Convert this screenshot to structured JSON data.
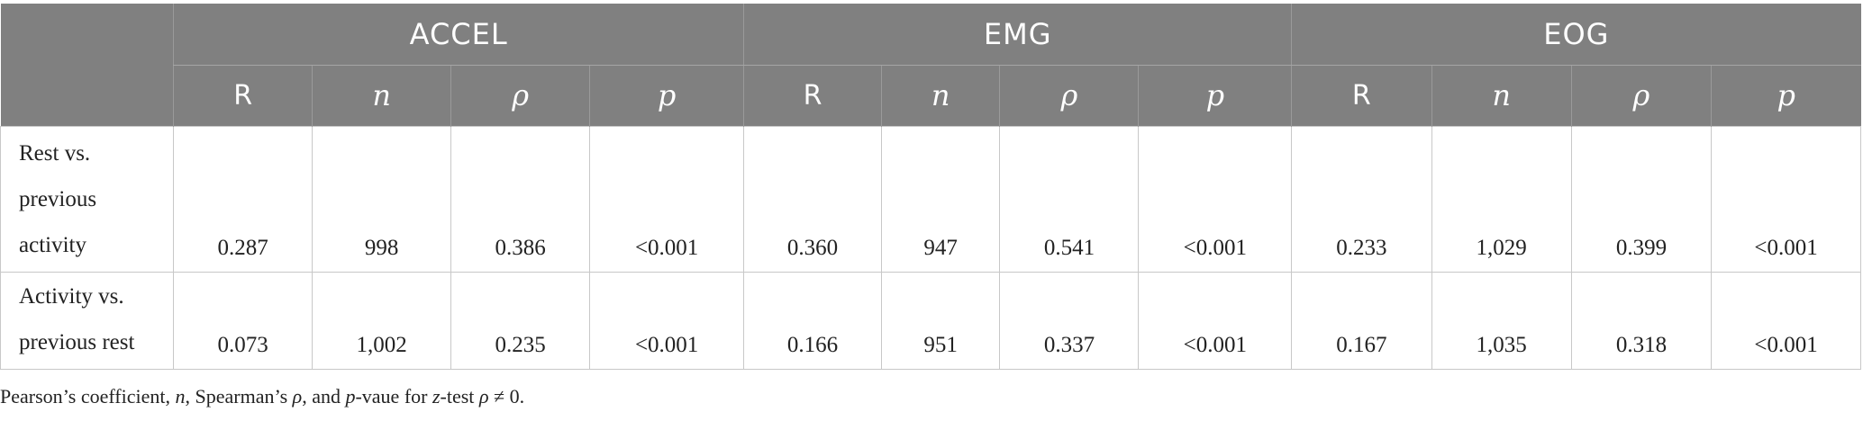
{
  "groups": [
    "ACCEL",
    "EMG",
    "EOG"
  ],
  "subheaders": [
    "R",
    "n",
    "ρ",
    "p"
  ],
  "rows": [
    {
      "label_lines": [
        "Rest vs.",
        "previous",
        "activity"
      ],
      "values": [
        "0.287",
        "998",
        "0.386",
        "<0.001",
        "0.360",
        "947",
        "0.541",
        "<0.001",
        "0.233",
        "1,029",
        "0.399",
        "<0.001"
      ]
    },
    {
      "label_lines": [
        "Activity vs.",
        "previous rest"
      ],
      "values": [
        "0.073",
        "1,002",
        "0.235",
        "<0.001",
        "0.166",
        "951",
        "0.337",
        "<0.001",
        "0.167",
        "1,035",
        "0.318",
        "<0.001"
      ]
    }
  ],
  "footnote": {
    "t1": "Pearson’s coefficient, ",
    "i1": "n",
    "t2": ", Spearman’s ",
    "i2": "ρ",
    "t3": ", and ",
    "i3": "p",
    "t4": "-vaue for ",
    "i4": "z",
    "t5": "-test ",
    "i5": "ρ",
    "t6": " ≠ 0."
  }
}
